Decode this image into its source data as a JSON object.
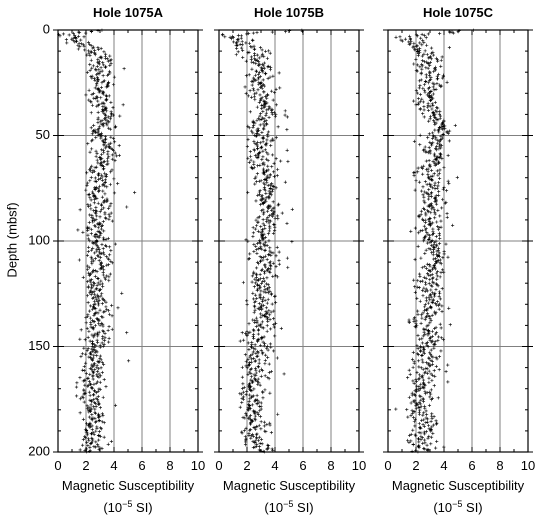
{
  "figure": {
    "ylabel": "Depth (mbsf)",
    "xlabel_line1": "Magnetic Susceptibility",
    "xlabel_unit_prefix": "(10",
    "xlabel_unit_exp": "−5",
    "xlabel_unit_suffix": " SI)",
    "colors": {
      "points": "#000000",
      "grid": "#808080",
      "axis": "#000000",
      "background": "#ffffff"
    }
  },
  "chart_data": [
    {
      "type": "scatter",
      "title": "Hole 1075A",
      "xlabel": "Magnetic Susceptibility (10^-5 SI)",
      "ylabel": "Depth (mbsf)",
      "xlim": [
        0,
        10
      ],
      "ylim": [
        0,
        200
      ],
      "y_inverted": true,
      "grid": true,
      "x_ticks": [
        0,
        2,
        4,
        6,
        8,
        10
      ],
      "y_ticks": [
        0,
        50,
        100,
        150,
        200
      ],
      "marker": "plus",
      "profile": [
        [
          0,
          3.2
        ],
        [
          2,
          0.8
        ],
        [
          4,
          1.0
        ],
        [
          6,
          1.6
        ],
        [
          10,
          2.6
        ],
        [
          14,
          3.2
        ],
        [
          20,
          3.0
        ],
        [
          25,
          3.2
        ],
        [
          30,
          2.8
        ],
        [
          35,
          3.2
        ],
        [
          40,
          3.4
        ],
        [
          45,
          3.2
        ],
        [
          50,
          3.1
        ],
        [
          55,
          3.4
        ],
        [
          60,
          3.6
        ],
        [
          65,
          3.0
        ],
        [
          70,
          3.2
        ],
        [
          75,
          2.8
        ],
        [
          80,
          3.0
        ],
        [
          85,
          2.8
        ],
        [
          90,
          3.0
        ],
        [
          95,
          2.6
        ],
        [
          100,
          2.8
        ],
        [
          105,
          3.0
        ],
        [
          110,
          2.8
        ],
        [
          115,
          3.0
        ],
        [
          120,
          2.6
        ],
        [
          125,
          2.8
        ],
        [
          130,
          3.0
        ],
        [
          135,
          2.8
        ],
        [
          140,
          2.6
        ],
        [
          145,
          2.8
        ],
        [
          150,
          2.6
        ],
        [
          155,
          2.4
        ],
        [
          160,
          2.6
        ],
        [
          165,
          2.4
        ],
        [
          170,
          2.4
        ],
        [
          175,
          2.5
        ],
        [
          180,
          2.4
        ],
        [
          185,
          2.6
        ],
        [
          190,
          2.4
        ],
        [
          195,
          2.4
        ],
        [
          198,
          2.4
        ]
      ],
      "spread": 0.8
    },
    {
      "type": "scatter",
      "title": "Hole 1075B",
      "xlabel": "Magnetic Susceptibility (10^-5 SI)",
      "ylabel": "",
      "xlim": [
        0,
        10
      ],
      "ylim": [
        0,
        200
      ],
      "y_inverted": true,
      "grid": true,
      "x_ticks": [
        0,
        2,
        4,
        6,
        8,
        10
      ],
      "y_ticks": [
        0,
        50,
        100,
        150,
        200
      ],
      "marker": "plus",
      "profile": [
        [
          0,
          6.0
        ],
        [
          2,
          1.2
        ],
        [
          5,
          1.6
        ],
        [
          10,
          2.2
        ],
        [
          15,
          2.6
        ],
        [
          20,
          3.0
        ],
        [
          25,
          2.8
        ],
        [
          30,
          3.0
        ],
        [
          35,
          3.2
        ],
        [
          40,
          3.4
        ],
        [
          45,
          3.0
        ],
        [
          50,
          3.2
        ],
        [
          55,
          2.8
        ],
        [
          60,
          3.2
        ],
        [
          65,
          3.0
        ],
        [
          70,
          3.2
        ],
        [
          75,
          3.4
        ],
        [
          80,
          3.2
        ],
        [
          85,
          3.6
        ],
        [
          90,
          3.4
        ],
        [
          95,
          3.2
        ],
        [
          100,
          3.0
        ],
        [
          105,
          3.2
        ],
        [
          110,
          3.4
        ],
        [
          115,
          3.0
        ],
        [
          120,
          2.8
        ],
        [
          125,
          3.2
        ],
        [
          130,
          3.0
        ],
        [
          135,
          3.2
        ],
        [
          140,
          2.8
        ],
        [
          145,
          2.6
        ],
        [
          150,
          2.8
        ],
        [
          155,
          2.6
        ],
        [
          160,
          2.4
        ],
        [
          165,
          2.6
        ],
        [
          170,
          2.2
        ],
        [
          175,
          2.4
        ],
        [
          180,
          2.2
        ],
        [
          185,
          2.6
        ],
        [
          190,
          2.8
        ],
        [
          195,
          2.4
        ],
        [
          198,
          3.0
        ]
      ],
      "spread": 0.9
    },
    {
      "type": "scatter",
      "title": "Hole 1075C",
      "xlabel": "Magnetic Susceptibility (10^-5 SI)",
      "ylabel": "",
      "xlim": [
        0,
        10
      ],
      "ylim": [
        0,
        200
      ],
      "y_inverted": true,
      "grid": true,
      "x_ticks": [
        0,
        2,
        4,
        6,
        8,
        10
      ],
      "y_ticks": [
        0,
        50,
        100,
        150,
        200
      ],
      "marker": "plus",
      "profile": [
        [
          0,
          6.0
        ],
        [
          3,
          1.2
        ],
        [
          6,
          1.6
        ],
        [
          10,
          2.6
        ],
        [
          15,
          3.0
        ],
        [
          20,
          2.8
        ],
        [
          25,
          3.2
        ],
        [
          30,
          2.6
        ],
        [
          35,
          2.8
        ],
        [
          38,
          3.0
        ],
        [
          45,
          3.6
        ],
        [
          47,
          4.2
        ],
        [
          50,
          3.0
        ],
        [
          55,
          3.2
        ],
        [
          60,
          3.4
        ],
        [
          65,
          3.0
        ],
        [
          70,
          2.8
        ],
        [
          75,
          3.2
        ],
        [
          80,
          3.0
        ],
        [
          85,
          3.2
        ],
        [
          90,
          3.0
        ],
        [
          95,
          2.8
        ],
        [
          100,
          3.0
        ],
        [
          105,
          3.4
        ],
        [
          110,
          3.2
        ],
        [
          115,
          3.0
        ],
        [
          120,
          2.8
        ],
        [
          125,
          3.0
        ],
        [
          130,
          3.2
        ],
        [
          135,
          2.8
        ],
        [
          140,
          2.6
        ],
        [
          145,
          2.8
        ],
        [
          150,
          2.6
        ],
        [
          155,
          2.8
        ],
        [
          160,
          2.6
        ],
        [
          165,
          2.4
        ],
        [
          170,
          2.6
        ],
        [
          175,
          2.4
        ],
        [
          180,
          2.2
        ],
        [
          185,
          2.4
        ],
        [
          190,
          2.6
        ],
        [
          195,
          2.2
        ],
        [
          198,
          2.6
        ]
      ],
      "spread": 0.9
    }
  ]
}
